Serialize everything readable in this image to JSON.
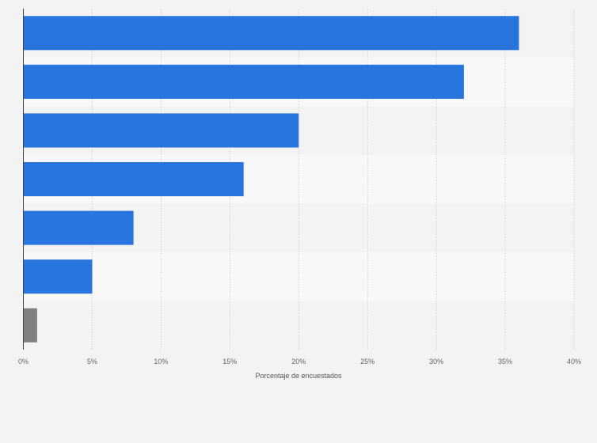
{
  "chart_data": {
    "type": "bar",
    "orientation": "horizontal",
    "categories": [
      "",
      "",
      "",
      "",
      "",
      "",
      ""
    ],
    "values": [
      36,
      32,
      20,
      16,
      8,
      5,
      1
    ],
    "bar_colors": [
      "#2876dd",
      "#2876dd",
      "#2876dd",
      "#2876dd",
      "#2876dd",
      "#2876dd",
      "#808080"
    ],
    "xlabel": "Porcentaje de encuestados",
    "ylabel": "",
    "xlim": [
      0,
      40
    ],
    "xticks": [
      0,
      5,
      10,
      15,
      20,
      25,
      30,
      35,
      40
    ],
    "xtick_labels": [
      "0%",
      "5%",
      "10%",
      "15%",
      "20%",
      "25%",
      "30%",
      "35%",
      "40%"
    ],
    "grid": true
  }
}
